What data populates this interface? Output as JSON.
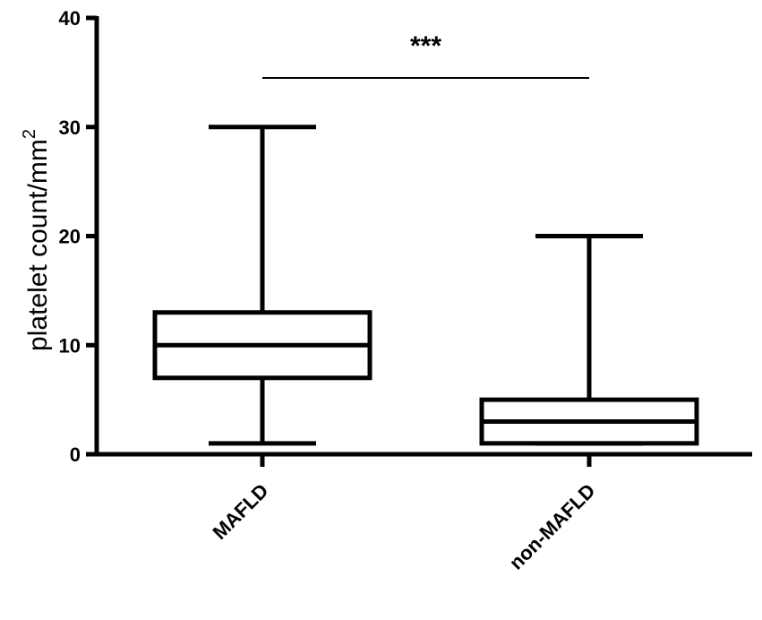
{
  "chart_data": {
    "type": "box",
    "title": "",
    "xlabel": "",
    "ylabel": "platelet count/mm",
    "ylabel_superscript": "2",
    "ylim": [
      0,
      40
    ],
    "yticks": [
      0,
      10,
      20,
      30,
      40
    ],
    "categories": [
      "MAFLD",
      "non-MAFLD"
    ],
    "boxes": [
      {
        "category": "MAFLD",
        "min": 1,
        "q1": 7,
        "median": 10,
        "q3": 13,
        "max": 30
      },
      {
        "category": "non-MAFLD",
        "min": 1,
        "q1": 1,
        "median": 3,
        "q3": 5,
        "max": 20
      }
    ],
    "annotations": [
      {
        "text": "***",
        "type": "significance-bracket",
        "from": "MAFLD",
        "to": "non-MAFLD",
        "y": 34.5
      }
    ],
    "grid": false,
    "colors": {
      "stroke": "#000000",
      "background": "#ffffff"
    }
  }
}
